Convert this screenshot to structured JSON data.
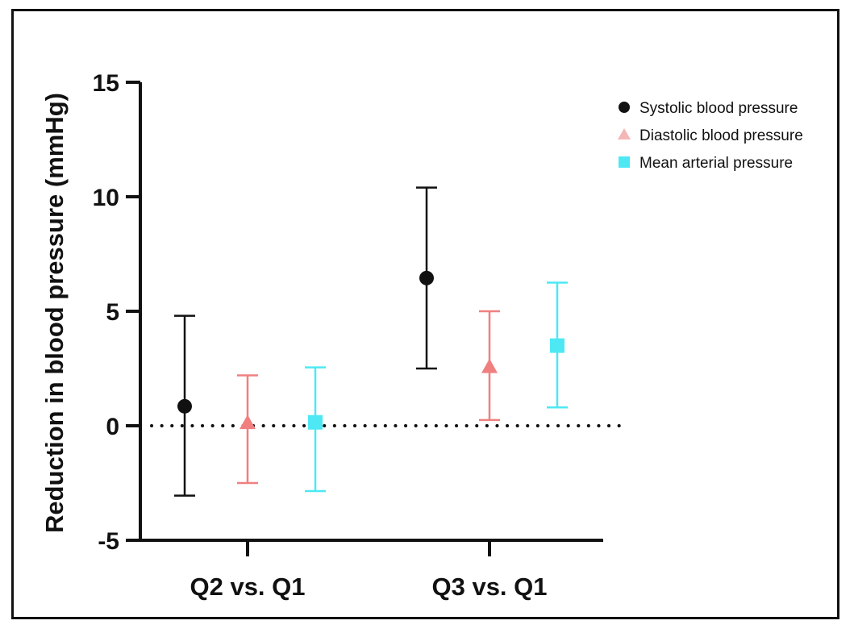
{
  "chart_data": {
    "type": "scatter",
    "title": "",
    "xlabel": "",
    "ylabel": "Reduction in blood pressure  (mmHg)",
    "ylim": [
      -5,
      15
    ],
    "yticks": [
      15,
      10,
      5,
      0,
      -5
    ],
    "ytick_labels": [
      "15",
      "10",
      "5",
      "0",
      "-5"
    ],
    "categories": [
      "Q2 vs. Q1",
      "Q3 vs. Q1"
    ],
    "reference_line": 0,
    "legend_position": "top-right",
    "series": [
      {
        "name": "Systolic blood pressure",
        "marker": "circle",
        "color": "#111111",
        "values": [
          0.85,
          6.45
        ],
        "lower": [
          -3.05,
          2.5
        ],
        "upper": [
          4.8,
          10.4
        ]
      },
      {
        "name": "Diastolic blood pressure",
        "marker": "triangle",
        "color": "#f08080",
        "legend_color": "#f4b6b6",
        "values": [
          0.1,
          2.55
        ],
        "lower": [
          -2.5,
          0.25
        ],
        "upper": [
          2.2,
          5.0
        ]
      },
      {
        "name": "Mean arterial pressure",
        "marker": "square",
        "color": "#4de8f4",
        "values": [
          0.15,
          3.5
        ],
        "lower": [
          -2.85,
          0.8
        ],
        "upper": [
          2.55,
          6.25
        ]
      }
    ]
  }
}
